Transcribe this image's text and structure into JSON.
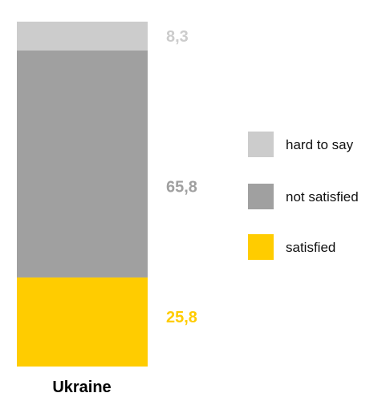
{
  "chart_data": {
    "type": "bar",
    "stacked": true,
    "categories": [
      "Ukraine"
    ],
    "series": [
      {
        "name": "satisfied",
        "values": [
          25.8
        ],
        "value_label": "25,8",
        "color": "#ffcc00",
        "label_color": "#ffcc00"
      },
      {
        "name": "not satisfied",
        "values": [
          65.8
        ],
        "value_label": "65,8",
        "color": "#a0a0a0",
        "label_color": "#a0a0a0"
      },
      {
        "name": "hard to say",
        "values": [
          8.3
        ],
        "value_label": "8,3",
        "color": "#cccccc",
        "label_color": "#cccccc"
      }
    ],
    "legend": {
      "placement": "right",
      "entries": [
        "hard to say",
        "not satisfied",
        "satisfied"
      ]
    },
    "ylim": [
      0,
      100
    ],
    "grid": false,
    "title": "",
    "xlabel": "",
    "ylabel": ""
  }
}
